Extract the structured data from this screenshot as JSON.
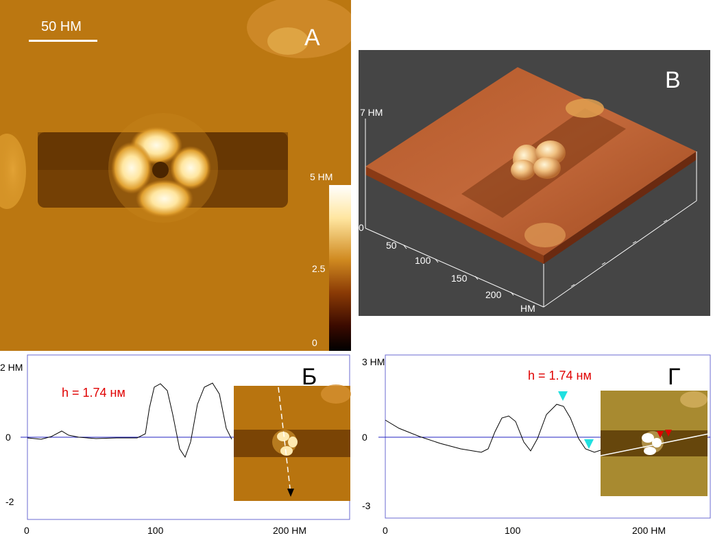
{
  "panel_a": {
    "letter": "А",
    "scale_label": "50  НМ",
    "colorbar": {
      "top_label": "5 НМ",
      "mid_label": "2.5",
      "bottom_label": "0"
    }
  },
  "panel_b3d": {
    "letter": "В",
    "z_label": "7 НМ",
    "z_zero": "0",
    "ticks": [
      "50",
      "100",
      "150",
      "200"
    ],
    "unit": "НМ"
  },
  "panel_profile1": {
    "letter": "Б",
    "y_top": "2 НМ",
    "y_mid": "0",
    "y_bottom": "-2",
    "x_ticks": [
      "0",
      "100",
      "200  НМ"
    ],
    "height_label": "h = 1.74 нм"
  },
  "panel_profile2": {
    "letter": "Г",
    "y_top": "3 НМ",
    "y_mid": "0",
    "y_bottom": "-3",
    "x_ticks": [
      "0",
      "100",
      "200  НМ"
    ],
    "height_label": "h = 1.74 нм"
  },
  "colors": {
    "afm_dark": "#8a4a05",
    "afm_mid": "#b8740f",
    "afm_bright": "#fff0c0",
    "axis_blue": "#2020c0",
    "marker_cyan": "#20e0e0",
    "marker_red": "#e00000",
    "bg_3d": "#454545"
  }
}
